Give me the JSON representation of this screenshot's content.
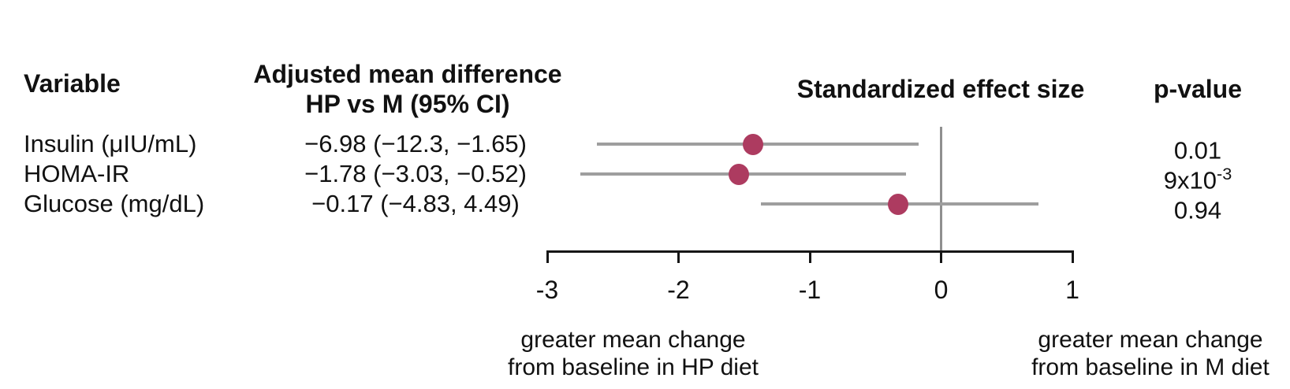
{
  "table": {
    "headers": {
      "variable": "Variable",
      "adjusted_line1": "Adjusted mean difference",
      "adjusted_line2": "HP vs M (95% CI)",
      "effect": "Standardized effect size",
      "pvalue": "p-value"
    },
    "rows": [
      {
        "variable": "Insulin (μIU/mL)",
        "adjusted": "−6.98 (−12.3, −1.65)",
        "p": "0.01",
        "p_sup": ""
      },
      {
        "variable": "HOMA-IR",
        "adjusted": "−1.78 (−3.03, −0.52)",
        "p": "9x10",
        "p_sup": "-3"
      },
      {
        "variable": "Glucose (mg/dL)",
        "adjusted": "−0.17 (−4.83, 4.49)",
        "p": "0.94",
        "p_sup": ""
      }
    ]
  },
  "chart_data": {
    "type": "forest",
    "title": "Standardized effect size",
    "series": [
      {
        "name": "Insulin (μIU/mL)",
        "estimate": -1.43,
        "ci_low": -2.62,
        "ci_high": -0.17
      },
      {
        "name": "HOMA-IR",
        "estimate": -1.54,
        "ci_low": -2.75,
        "ci_high": -0.27
      },
      {
        "name": "Glucose (mg/dL)",
        "estimate": -0.33,
        "ci_low": -1.37,
        "ci_high": 0.74
      }
    ],
    "x_ticks": [
      "-3",
      "-2",
      "-1",
      "0",
      "1"
    ],
    "xlim": [
      -3,
      1
    ],
    "reference_line": 0,
    "grid": false,
    "legend": "none",
    "axis_note_left_line1": "greater mean change",
    "axis_note_left_line2": "from baseline in HP diet",
    "axis_note_right_line1": "greater mean change",
    "axis_note_right_line2": "from baseline in M diet",
    "colors": {
      "marker": "#ad3b60",
      "ci_line": "#9e9e9e",
      "ref_line": "#8f8f8f",
      "axis": "#161616",
      "text": "#111111"
    }
  }
}
